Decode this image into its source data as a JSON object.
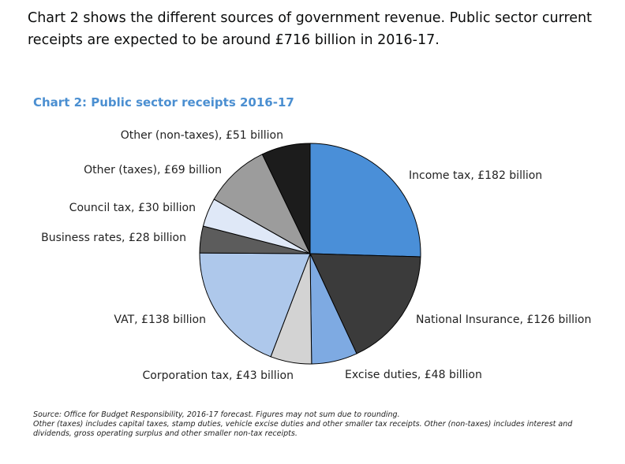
{
  "intro_text": "Chart 2 shows the different sources of government revenue. Public sector current receipts are expected to be around £716 billion in 2016-17.",
  "chart_data": {
    "type": "pie",
    "title": "Chart 2: Public sector receipts 2016-17",
    "unit": "£ billion",
    "slices": [
      {
        "name": "Income tax",
        "value": 182,
        "label": "Income tax, £182 billion",
        "color": "#4a8fd8"
      },
      {
        "name": "National Insurance",
        "value": 126,
        "label": "National Insurance, £126 billion",
        "color": "#3b3b3b"
      },
      {
        "name": "Excise duties",
        "value": 48,
        "label": "Excise duties, £48 billion",
        "color": "#7eaae2"
      },
      {
        "name": "Corporation tax",
        "value": 43,
        "label": "Corporation tax, £43 billion",
        "color": "#d3d3d3"
      },
      {
        "name": "VAT",
        "value": 138,
        "label": "VAT, £138 billion",
        "color": "#aec8eb"
      },
      {
        "name": "Business rates",
        "value": 28,
        "label": "Business rates, £28 billion",
        "color": "#5c5c5c"
      },
      {
        "name": "Council tax",
        "value": 30,
        "label": "Council tax, £30 billion",
        "color": "#dfe8f7"
      },
      {
        "name": "Other (taxes)",
        "value": 69,
        "label": "Other (taxes), £69 billion",
        "color": "#9c9c9c"
      },
      {
        "name": "Other (non-taxes)",
        "value": 51,
        "label": "Other (non-taxes), £51 billion",
        "color": "#1c1c1c"
      }
    ]
  },
  "notes": {
    "source": "Source: Office for Budget Responsibility, 2016-17 forecast. Figures may not sum due to rounding.",
    "definitions": "Other (taxes) includes capital taxes, stamp duties, vehicle excise duties and other smaller tax receipts. Other (non-taxes) includes interest and dividends, gross operating surplus and other smaller non-tax receipts."
  }
}
